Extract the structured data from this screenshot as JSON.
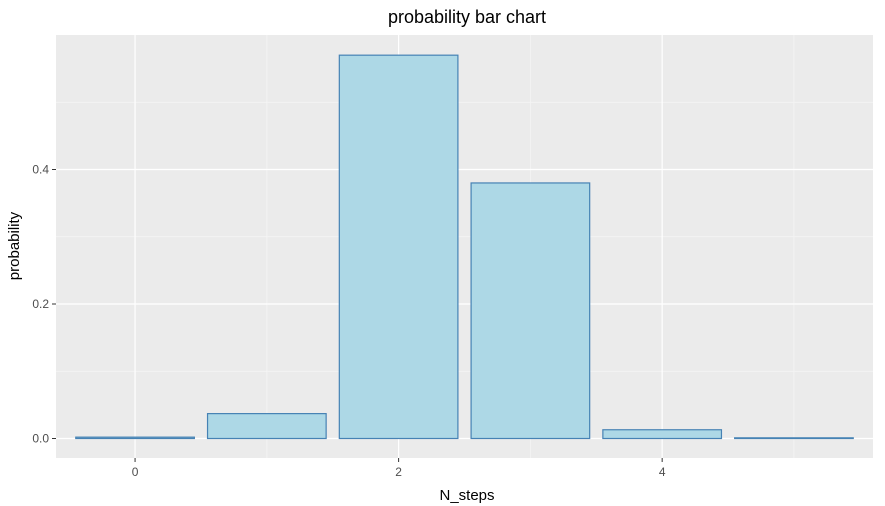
{
  "chart_data": {
    "type": "bar",
    "title": "probability bar chart",
    "xlabel": "N_steps",
    "ylabel": "probability",
    "x": [
      0,
      1,
      2,
      3,
      4,
      5
    ],
    "values": [
      0.002,
      0.037,
      0.57,
      0.38,
      0.013,
      0.001
    ],
    "xlim": [
      -0.6,
      5.6
    ],
    "ylim": [
      -0.029,
      0.6
    ],
    "x_ticks": [
      0,
      2,
      4
    ],
    "x_tick_labels": [
      "0",
      "2",
      "4"
    ],
    "y_ticks": [
      0.0,
      0.2,
      0.4
    ],
    "y_tick_labels": [
      "0.0",
      "0.2",
      "0.4"
    ],
    "grid": true,
    "legend": "none",
    "colors": {
      "panel_background": "#ebebeb",
      "grid_major": "#ffffff",
      "grid_minor": "#f5f5f5",
      "bar_fill": "#add8e6",
      "bar_outline": "#4682b4"
    }
  }
}
